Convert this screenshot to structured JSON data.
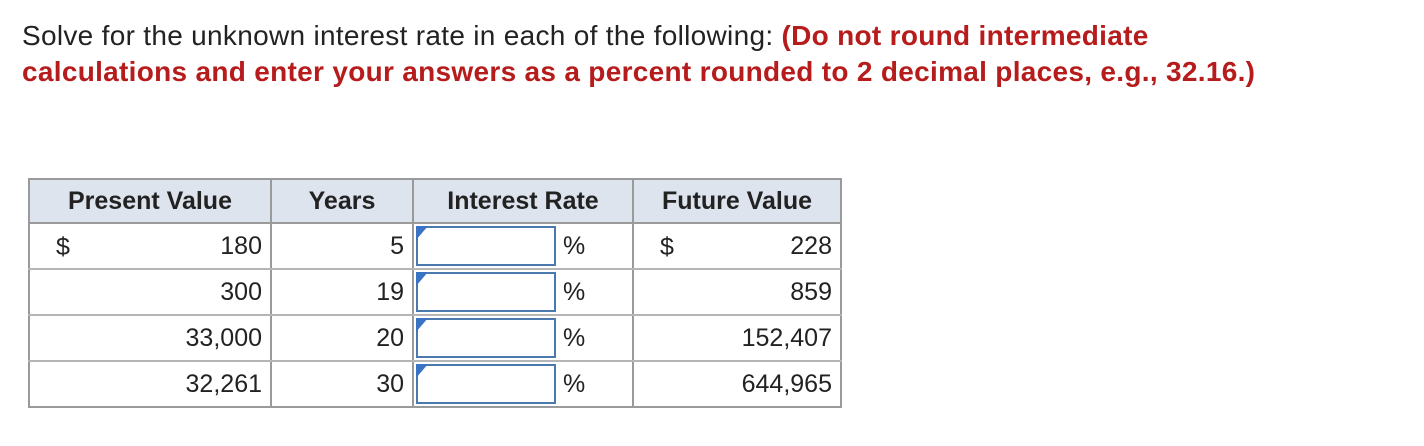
{
  "instructions": {
    "lead": "Solve for the unknown interest rate in each of the following: ",
    "emphasis": "(Do not round intermediate calculations and enter your answers as a percent rounded to 2 decimal places, e.g., 32.16.)"
  },
  "table": {
    "headers": {
      "present_value": "Present Value",
      "years": "Years",
      "interest_rate": "Interest Rate",
      "future_value": "Future Value"
    },
    "currency_symbol": "$",
    "percent_symbol": "%",
    "rows": [
      {
        "present_value": "180",
        "years": "5",
        "interest_rate": "",
        "future_value": "228"
      },
      {
        "present_value": "300",
        "years": "19",
        "interest_rate": "",
        "future_value": "859"
      },
      {
        "present_value": "33,000",
        "years": "20",
        "interest_rate": "",
        "future_value": "152,407"
      },
      {
        "present_value": "32,261",
        "years": "30",
        "interest_rate": "",
        "future_value": "644,965"
      }
    ]
  }
}
